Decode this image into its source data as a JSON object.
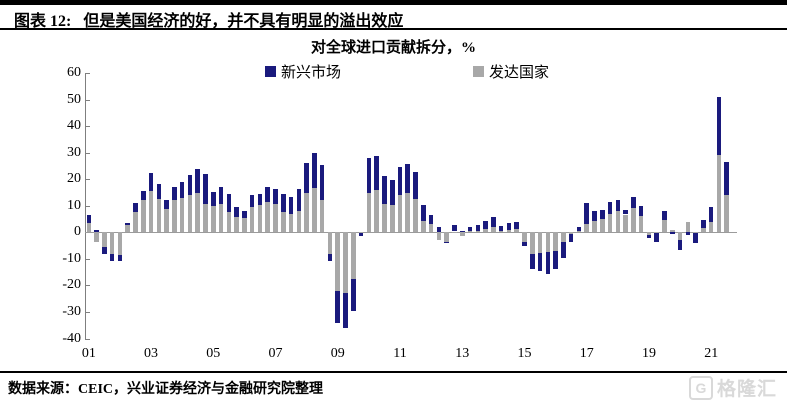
{
  "header": {
    "label": "图表 12:",
    "title": "但是美国经济的好，并不具有明显的溢出效应"
  },
  "chart": {
    "title": "对全球进口贡献拆分，%"
  },
  "legend": {
    "em": "新兴市场",
    "dm": "发达国家"
  },
  "footer": {
    "source": "数据来源：CEIC，兴业证券经济与金融研究院整理"
  },
  "logo": {
    "g": "G",
    "text": "格隆汇"
  },
  "colors": {
    "emerging": "#1a1a7d",
    "developed": "#a8a8a8",
    "axis": "#7f7f7f",
    "zero_line": "#9b9b9b"
  },
  "chart_data": {
    "type": "bar",
    "stacked": true,
    "title": "对全球进口贡献拆分，%",
    "x_start": "2001Q1",
    "x_freq": "quarterly",
    "x_tick_labels": [
      "01",
      "03",
      "05",
      "07",
      "09",
      "11",
      "13",
      "15",
      "17",
      "19",
      "21"
    ],
    "x_tick_quarter_index": [
      0,
      8,
      16,
      24,
      32,
      40,
      48,
      56,
      64,
      72,
      80
    ],
    "y_ticks": [
      60,
      50,
      40,
      30,
      20,
      10,
      0,
      -10,
      -20,
      -30,
      -40
    ],
    "ylim": [
      -40,
      60
    ],
    "legend_position": "top",
    "series": [
      {
        "name": "新兴市场",
        "color": "#1a1a7d",
        "values": [
          3.2,
          0.8,
          -2.5,
          -2.8,
          -2.3,
          0.8,
          3.4,
          3.5,
          7.0,
          5.7,
          3.4,
          5.0,
          6.0,
          7.6,
          9.1,
          11.4,
          5.3,
          6.3,
          6.9,
          3.8,
          2.5,
          4.4,
          4.4,
          5.7,
          5.7,
          6.9,
          6.3,
          8.2,
          11.4,
          13.3,
          13.3,
          -2.8,
          -12.0,
          -13.3,
          -12.0,
          -1.0,
          13.0,
          12.9,
          10.4,
          9.5,
          10.7,
          11.1,
          10.1,
          5.7,
          3.5,
          2.0,
          -0.5,
          2.5,
          0.5,
          1.5,
          2.3,
          3.2,
          3.8,
          1.8,
          2.5,
          2.5,
          -1.3,
          -5.7,
          -6.6,
          -8.2,
          -6.7,
          -5.7,
          -3.3,
          1.5,
          7.8,
          3.8,
          3.4,
          4.4,
          4.0,
          1.8,
          4.2,
          3.8,
          -1.0,
          -3.5,
          3.5,
          -0.5,
          -3.5,
          -1.0,
          -3.8,
          3.0,
          5.6,
          22.0,
          12.5
        ]
      },
      {
        "name": "发达国家",
        "color": "#a8a8a8",
        "values": [
          3.5,
          -3.8,
          -5.5,
          -8.2,
          -8.4,
          2.7,
          7.6,
          12.0,
          15.5,
          12.6,
          8.6,
          12.0,
          13.0,
          13.9,
          14.9,
          10.7,
          9.8,
          10.7,
          7.6,
          5.7,
          5.5,
          9.5,
          10.1,
          11.4,
          10.7,
          7.6,
          7.0,
          8.2,
          14.7,
          16.6,
          12.0,
          -8.2,
          -22.1,
          -22.7,
          -17.7,
          -0.3,
          14.8,
          15.8,
          10.7,
          10.1,
          13.9,
          14.8,
          12.6,
          4.4,
          3.2,
          -3.0,
          -3.5,
          0.3,
          -1.5,
          0.5,
          0.6,
          1.2,
          1.9,
          0.4,
          0.9,
          1.3,
          -3.7,
          -8.2,
          -7.9,
          -7.6,
          -7.2,
          -3.8,
          -0.5,
          0.5,
          3.2,
          4.4,
          5.1,
          7.0,
          8.2,
          6.7,
          9.0,
          6.0,
          -1.2,
          -0.3,
          4.5,
          1.0,
          -3.0,
          3.8,
          -0.2,
          1.8,
          3.8,
          29.0,
          14.0
        ]
      }
    ]
  }
}
